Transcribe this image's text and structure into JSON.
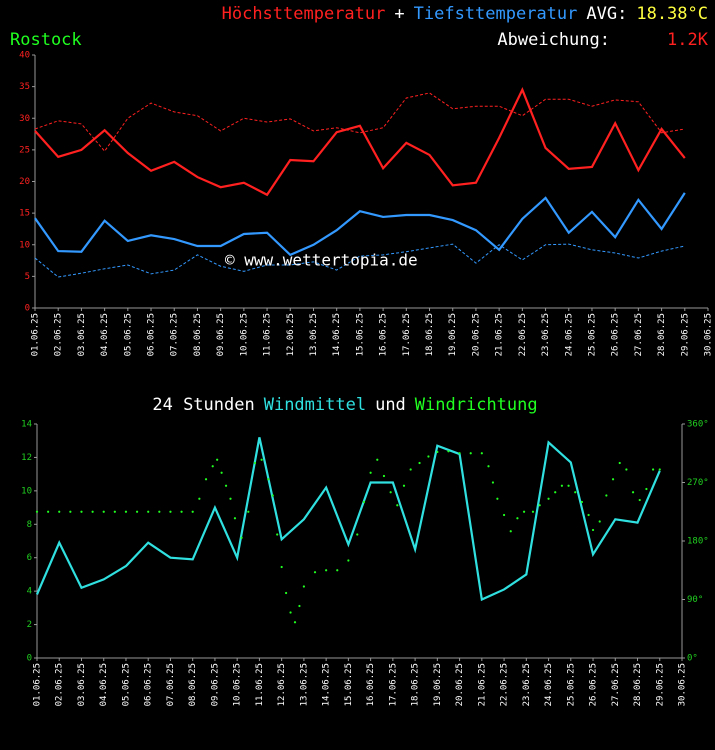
{
  "chart_data": [
    {
      "type": "line",
      "title_segments": [
        {
          "text": "Höchsttemperatur",
          "color": "#ff2020"
        },
        {
          "text": "+",
          "color": "#ffffff"
        },
        {
          "text": "Tiefsttemperatur",
          "color": "#3399ff"
        },
        {
          "text": "AVG:",
          "color": "#ffffff"
        },
        {
          "text": "18.38°C",
          "color": "#ffff40"
        }
      ],
      "location": "Rostock",
      "location_color": "#20ff20",
      "deviation_label": "Abweichung:",
      "deviation": "1.2K",
      "deviation_color": "#ff2020",
      "watermark": "© www.wettertopia.de",
      "categories": [
        "01.06.25",
        "02.06.25",
        "03.06.25",
        "04.06.25",
        "05.06.25",
        "06.06.25",
        "07.06.25",
        "08.06.25",
        "09.06.25",
        "10.06.25",
        "11.06.25",
        "12.06.25",
        "13.06.25",
        "14.06.25",
        "15.06.25",
        "16.06.25",
        "17.06.25",
        "18.06.25",
        "19.06.25",
        "20.06.25",
        "21.06.25",
        "22.06.25",
        "23.06.25",
        "24.06.25",
        "25.06.25",
        "26.06.25",
        "27.06.25",
        "28.06.25",
        "29.06.25",
        "30.06.25"
      ],
      "ylim": [
        0,
        40
      ],
      "yticks": [
        0,
        5,
        10,
        15,
        20,
        25,
        30,
        35,
        40
      ],
      "ytick_color": "#ff2020",
      "series": [
        {
          "color": "#ff2020",
          "dash": true,
          "values": [
            28.3,
            29.6,
            29.1,
            24.8,
            30.0,
            32.4,
            31.0,
            30.4,
            28.0,
            30.0,
            29.4,
            29.9,
            28.0,
            28.5,
            27.7,
            28.5,
            33.2,
            34.0,
            31.5,
            31.9,
            31.9,
            30.4,
            33.0,
            33.0,
            31.9,
            32.9,
            32.6,
            27.7,
            28.3,
            null
          ]
        },
        {
          "color": "#3399ff",
          "dash": true,
          "values": [
            7.9,
            4.9,
            5.5,
            6.2,
            6.8,
            5.4,
            6.0,
            8.4,
            6.6,
            5.8,
            6.8,
            6.8,
            7.3,
            6.0,
            8.2,
            8.4,
            8.9,
            9.5,
            10.1,
            7.1,
            10.0,
            7.6,
            10.0,
            10.1,
            9.2,
            8.7,
            7.9,
            9.0,
            9.8,
            null
          ]
        },
        {
          "name": "Höchsttemperatur",
          "color": "#ff2020",
          "dash": false,
          "values": [
            28.0,
            23.9,
            25.0,
            28.1,
            24.5,
            21.7,
            23.1,
            20.7,
            19.1,
            19.8,
            17.9,
            23.4,
            23.2,
            27.8,
            28.8,
            22.1,
            26.1,
            24.2,
            19.4,
            19.8,
            26.9,
            34.5,
            25.3,
            22.0,
            22.3,
            29.2,
            21.8,
            28.3,
            23.7,
            null
          ]
        },
        {
          "name": "Tiefsttemperatur",
          "color": "#3399ff",
          "dash": false,
          "values": [
            14.2,
            9.0,
            8.9,
            13.8,
            10.6,
            11.5,
            10.9,
            9.8,
            9.8,
            11.7,
            11.9,
            8.4,
            10.0,
            12.3,
            15.3,
            14.4,
            14.7,
            14.7,
            13.9,
            12.3,
            9.2,
            14.1,
            17.4,
            11.9,
            15.2,
            11.2,
            17.1,
            12.5,
            18.2,
            null
          ]
        }
      ]
    },
    {
      "type": "line",
      "title_segments": [
        {
          "text": "24 Stunden",
          "color": "#ffffff"
        },
        {
          "text": "Windmittel",
          "color": "#30e0e0"
        },
        {
          "text": "und",
          "color": "#ffffff"
        },
        {
          "text": "Windrichtung",
          "color": "#20ff20"
        }
      ],
      "categories": [
        "01.06.25",
        "02.06.25",
        "03.06.25",
        "04.06.25",
        "05.06.25",
        "06.06.25",
        "07.06.25",
        "08.06.25",
        "09.06.25",
        "10.06.25",
        "11.06.25",
        "12.06.25",
        "13.06.25",
        "14.06.25",
        "15.06.25",
        "16.06.25",
        "17.06.25",
        "18.06.25",
        "19.06.25",
        "20.06.25",
        "21.06.25",
        "22.06.25",
        "23.06.25",
        "24.06.25",
        "25.06.25",
        "26.06.25",
        "27.06.25",
        "28.06.25",
        "29.06.25",
        "30.06.25"
      ],
      "xlim": [
        1,
        30
      ],
      "ylim": [
        0,
        14
      ],
      "yticks": [
        0,
        2,
        4,
        6,
        8,
        10,
        12,
        14
      ],
      "ytick_color": "#20d020",
      "y2lim": [
        0,
        360
      ],
      "y2ticks": [
        {
          "value": 0,
          "label": "0°"
        },
        {
          "value": 90,
          "label": "90°"
        },
        {
          "value": 180,
          "label": "180°"
        },
        {
          "value": 270,
          "label": "270°"
        },
        {
          "value": 360,
          "label": "360°"
        }
      ],
      "y2tick_color": "#20d020",
      "series": [
        {
          "name": "Windmittel",
          "color": "#30e0e0",
          "dash": false,
          "values": [
            3.8,
            6.9,
            4.2,
            4.7,
            5.5,
            6.9,
            6.0,
            5.9,
            9.0,
            6.0,
            13.2,
            7.1,
            8.3,
            10.2,
            6.8,
            10.5,
            10.5,
            6.5,
            12.7,
            12.2,
            3.5,
            4.1,
            5.0,
            12.9,
            11.7,
            6.2,
            8.3,
            8.1,
            11.2,
            null
          ]
        },
        {
          "name": "Windrichtung",
          "color": "#20ff20",
          "axis": "y2",
          "style": "dots",
          "x": [
            1,
            1.5,
            2,
            2.5,
            3,
            3.5,
            4,
            4.5,
            5,
            5.5,
            6,
            6.5,
            7,
            7.5,
            8,
            8.3,
            8.6,
            8.9,
            9.1,
            9.3,
            9.5,
            9.7,
            9.9,
            10.2,
            10.5,
            10.8,
            11.1,
            11.4,
            11.6,
            11.8,
            12,
            12.2,
            12.4,
            12.6,
            12.8,
            13,
            13.5,
            14,
            14.5,
            15,
            15.4,
            15.7,
            16,
            16.3,
            16.6,
            16.9,
            17.2,
            17.5,
            17.8,
            18.2,
            18.6,
            19,
            19.5,
            20,
            20.5,
            21,
            21.3,
            21.5,
            21.7,
            22,
            22.3,
            22.6,
            22.9,
            23.3,
            23.6,
            24,
            24.3,
            24.6,
            24.9,
            25.2,
            25.5,
            25.8,
            26,
            26.3,
            26.6,
            26.9,
            27.2,
            27.5,
            27.8,
            28.1,
            28.4,
            28.7,
            29
          ],
          "values": [
            225,
            225,
            225,
            225,
            225,
            225,
            225,
            225,
            225,
            225,
            225,
            225,
            225,
            225,
            225,
            245,
            275,
            295,
            305,
            285,
            265,
            245,
            215,
            185,
            225,
            300,
            305,
            275,
            250,
            190,
            140,
            100,
            70,
            55,
            80,
            110,
            132,
            135,
            135,
            150,
            190,
            240,
            285,
            305,
            280,
            255,
            235,
            265,
            290,
            300,
            310,
            317,
            318,
            315,
            315,
            315,
            295,
            270,
            245,
            220,
            195,
            215,
            225,
            225,
            235,
            245,
            255,
            265,
            265,
            255,
            240,
            220,
            197,
            210,
            250,
            275,
            300,
            290,
            255,
            243,
            260,
            290,
            290
          ]
        }
      ]
    }
  ]
}
